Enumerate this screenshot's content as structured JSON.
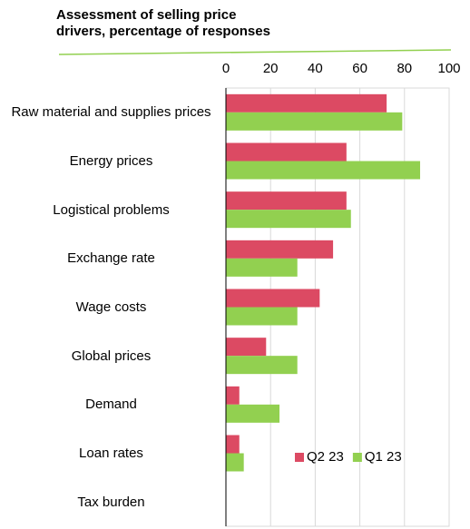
{
  "chart_data": {
    "type": "bar",
    "orientation": "horizontal",
    "title": "Assessment of selling price drivers, percentage of responses",
    "categories": [
      "Raw material and supplies prices",
      "Energy prices",
      "Logistical problems",
      "Exchange rate",
      "Wage costs",
      "Global prices",
      "Demand",
      "Loan rates",
      "Tax burden"
    ],
    "series": [
      {
        "name": "Q2 23",
        "color": "#dc4a63",
        "values": [
          72,
          54,
          54,
          48,
          42,
          18,
          6,
          6,
          0
        ]
      },
      {
        "name": "Q1 23",
        "color": "#92d050",
        "values": [
          79,
          87,
          56,
          32,
          32,
          32,
          24,
          8,
          0
        ]
      }
    ],
    "xlim": [
      0,
      100
    ],
    "xticks": [
      0,
      20,
      40,
      60,
      80,
      100
    ],
    "grid": true,
    "legend": "lower right"
  }
}
